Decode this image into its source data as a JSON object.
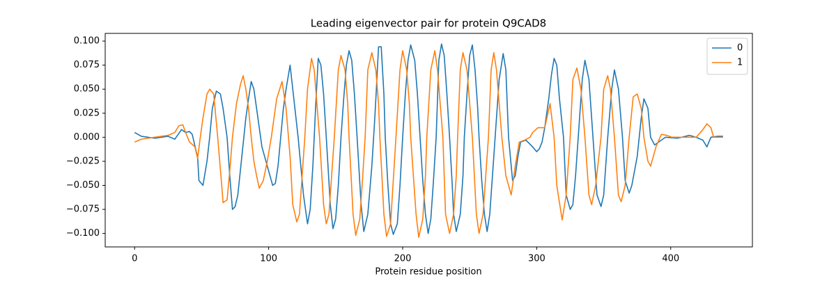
{
  "chart_data": {
    "type": "line",
    "title": "Leading eigenvector pair for protein Q9CAD8",
    "xlabel": "Protein residue position",
    "xlim": [
      -21.95,
      460.95
    ],
    "xticks": [
      0,
      100,
      200,
      300,
      400
    ],
    "ylim": [
      -0.114,
      0.108
    ],
    "yticks": [
      {
        "value": -0.1,
        "label": "−0.100"
      },
      {
        "value": -0.075,
        "label": "−0.075"
      },
      {
        "value": -0.05,
        "label": "−0.050"
      },
      {
        "value": -0.025,
        "label": "−0.025"
      },
      {
        "value": 0,
        "label": "0.000"
      },
      {
        "value": 0.025,
        "label": "0.025"
      },
      {
        "value": 0.05,
        "label": "0.050"
      },
      {
        "value": 0.075,
        "label": "0.075"
      },
      {
        "value": 0.1,
        "label": "0.100"
      }
    ],
    "legend": "upper right",
    "series": [
      {
        "name": "0",
        "color": "#1f77b4",
        "x": [
          0,
          5,
          10,
          15,
          20,
          25,
          30,
          35,
          38,
          41,
          43,
          46,
          47,
          48,
          51,
          54,
          56,
          58,
          61,
          64,
          66,
          69,
          71,
          73,
          75,
          77,
          80,
          83,
          85,
          87,
          89,
          91,
          93,
          95,
          99,
          103,
          105,
          107,
          109,
          111,
          113,
          116,
          118,
          120,
          122,
          124,
          126,
          129,
          131,
          133,
          135,
          137,
          139,
          141,
          143,
          146,
          148,
          150,
          152,
          154,
          156,
          158,
          160,
          162,
          164,
          166,
          169,
          171,
          174,
          177,
          179,
          180,
          182,
          184,
          186,
          187,
          189,
          191,
          193,
          196,
          198,
          200,
          202,
          204,
          206,
          209,
          211,
          213,
          215,
          217,
          219,
          221,
          223,
          225,
          227,
          229,
          231,
          233,
          235,
          237,
          238,
          240,
          243,
          245,
          246,
          248,
          250,
          252,
          254,
          256,
          257,
          259,
          261,
          263,
          265,
          267,
          269,
          272,
          275,
          277,
          279,
          282,
          284,
          286,
          288,
          292,
          297,
          300,
          302,
          304,
          306,
          309,
          311,
          313,
          315,
          317,
          320,
          322,
          325,
          327,
          329,
          331,
          334,
          336,
          339,
          342,
          345,
          348,
          350,
          353,
          356,
          358,
          361,
          364,
          366,
          369,
          371,
          375,
          378,
          380,
          383,
          385,
          388,
          391,
          396,
          405,
          414,
          419,
          424,
          427,
          430,
          435,
          439
        ],
        "values": [
          0.005,
          0.001,
          0.0,
          -0.001,
          0.0,
          0.001,
          -0.002,
          0.008,
          0.005,
          0.006,
          0.003,
          -0.015,
          -0.02,
          -0.045,
          -0.05,
          -0.025,
          0.0,
          0.03,
          0.048,
          0.045,
          0.03,
          0.0,
          -0.04,
          -0.075,
          -0.072,
          -0.06,
          -0.02,
          0.02,
          0.04,
          0.058,
          0.05,
          0.03,
          0.01,
          -0.01,
          -0.03,
          -0.05,
          -0.048,
          -0.03,
          0.0,
          0.03,
          0.05,
          0.075,
          0.05,
          0.025,
          0.0,
          -0.03,
          -0.06,
          -0.09,
          -0.075,
          -0.03,
          0.03,
          0.082,
          0.075,
          0.045,
          0.0,
          -0.07,
          -0.095,
          -0.085,
          -0.05,
          0.0,
          0.04,
          0.075,
          0.09,
          0.08,
          0.045,
          0.0,
          -0.07,
          -0.098,
          -0.08,
          -0.03,
          0.015,
          0.04,
          0.094,
          0.094,
          0.045,
          0.0,
          -0.05,
          -0.09,
          -0.101,
          -0.09,
          -0.05,
          0.0,
          0.045,
          0.08,
          0.096,
          0.08,
          0.045,
          0.0,
          -0.045,
          -0.08,
          -0.1,
          -0.085,
          -0.045,
          0.0,
          0.08,
          0.097,
          0.085,
          0.045,
          0.0,
          -0.05,
          -0.08,
          -0.098,
          -0.08,
          -0.04,
          0.0,
          0.045,
          0.085,
          0.096,
          0.07,
          0.03,
          0.0,
          -0.045,
          -0.08,
          -0.098,
          -0.08,
          -0.04,
          0.0,
          0.06,
          0.087,
          0.07,
          0.0,
          -0.045,
          -0.04,
          -0.02,
          -0.005,
          -0.003,
          -0.01,
          -0.015,
          -0.012,
          -0.005,
          0.01,
          0.04,
          0.065,
          0.082,
          0.075,
          0.04,
          0.0,
          -0.06,
          -0.075,
          -0.07,
          -0.04,
          0.0,
          0.06,
          0.08,
          0.06,
          0.0,
          -0.06,
          -0.072,
          -0.06,
          0.0,
          0.05,
          0.07,
          0.05,
          0.0,
          -0.045,
          -0.058,
          -0.05,
          -0.02,
          0.02,
          0.04,
          0.03,
          0.0,
          -0.008,
          -0.005,
          0.0,
          -0.001,
          0.002,
          0.0,
          -0.003,
          -0.01,
          0.0,
          0.001,
          0.001
        ]
      },
      {
        "name": "1",
        "color": "#ff7f0e",
        "x": [
          0,
          5,
          10,
          15,
          20,
          25,
          30,
          33,
          36,
          38,
          41,
          45,
          47,
          49,
          51,
          54,
          56,
          59,
          60,
          62,
          65,
          66,
          69,
          71,
          73,
          76,
          79,
          81,
          83,
          85,
          87,
          89,
          91,
          93,
          96,
          99,
          102,
          106,
          110,
          113,
          116,
          118,
          121,
          123,
          125,
          127,
          129,
          132,
          134,
          136,
          138,
          141,
          143,
          145,
          147,
          149,
          152,
          154,
          157,
          159,
          160,
          163,
          165,
          168,
          170,
          172,
          174,
          177,
          180,
          182,
          183,
          186,
          188,
          191,
          193,
          195,
          198,
          200,
          203,
          205,
          206,
          210,
          212,
          215,
          217,
          218,
          221,
          224,
          226,
          228,
          230,
          232,
          235,
          238,
          240,
          241,
          243,
          245,
          248,
          250,
          252,
          255,
          257,
          260,
          262,
          264,
          266,
          268,
          270,
          272,
          274,
          277,
          281,
          284,
          287,
          291,
          295,
          297,
          301,
          306,
          310,
          313,
          315,
          319,
          322,
          325,
          327,
          330,
          333,
          336,
          339,
          341,
          344,
          348,
          350,
          353,
          355,
          358,
          361,
          363,
          366,
          369,
          372,
          375,
          378,
          380,
          383,
          385,
          389,
          393,
          397,
          401,
          414,
          419,
          424,
          427,
          430,
          432,
          439
        ],
        "values": [
          -0.005,
          -0.002,
          -0.001,
          0.0,
          0.001,
          0.002,
          0.005,
          0.012,
          0.013,
          0.005,
          -0.005,
          -0.01,
          -0.022,
          0.0,
          0.02,
          0.045,
          0.05,
          0.045,
          0.03,
          0.0,
          -0.05,
          -0.068,
          -0.065,
          -0.035,
          0.0,
          0.035,
          0.055,
          0.064,
          0.05,
          0.03,
          0.0,
          -0.025,
          -0.04,
          -0.053,
          -0.045,
          -0.025,
          0.0,
          0.04,
          0.058,
          0.03,
          -0.02,
          -0.07,
          -0.088,
          -0.08,
          -0.04,
          0.0,
          0.05,
          0.082,
          0.07,
          0.035,
          0.0,
          -0.07,
          -0.09,
          -0.08,
          -0.04,
          0.0,
          0.07,
          0.085,
          0.07,
          0.035,
          0.0,
          -0.08,
          -0.102,
          -0.085,
          -0.045,
          0.0,
          0.07,
          0.088,
          0.07,
          0.035,
          0.0,
          -0.08,
          -0.103,
          -0.09,
          -0.045,
          0.0,
          0.07,
          0.09,
          0.07,
          0.035,
          0.0,
          -0.08,
          -0.104,
          -0.085,
          -0.04,
          0.0,
          0.07,
          0.09,
          0.07,
          0.035,
          0.0,
          -0.08,
          -0.1,
          -0.08,
          -0.04,
          0.0,
          0.07,
          0.088,
          0.07,
          0.035,
          0.0,
          -0.08,
          -0.1,
          -0.08,
          -0.04,
          0.0,
          0.07,
          0.088,
          0.07,
          0.035,
          0.0,
          -0.04,
          -0.06,
          -0.03,
          -0.005,
          -0.003,
          0.0,
          0.005,
          0.01,
          0.01,
          0.035,
          0.0,
          -0.05,
          -0.086,
          -0.06,
          0.0,
          0.06,
          0.072,
          0.05,
          0.0,
          -0.06,
          -0.07,
          -0.05,
          0.0,
          0.05,
          0.064,
          0.05,
          0.0,
          -0.06,
          -0.067,
          -0.05,
          0.0,
          0.042,
          0.045,
          0.03,
          0.0,
          -0.025,
          -0.03,
          -0.01,
          0.003,
          0.002,
          0.0,
          0.0,
          0.0,
          0.008,
          0.014,
          0.01,
          0.0,
          0.0
        ]
      }
    ]
  }
}
